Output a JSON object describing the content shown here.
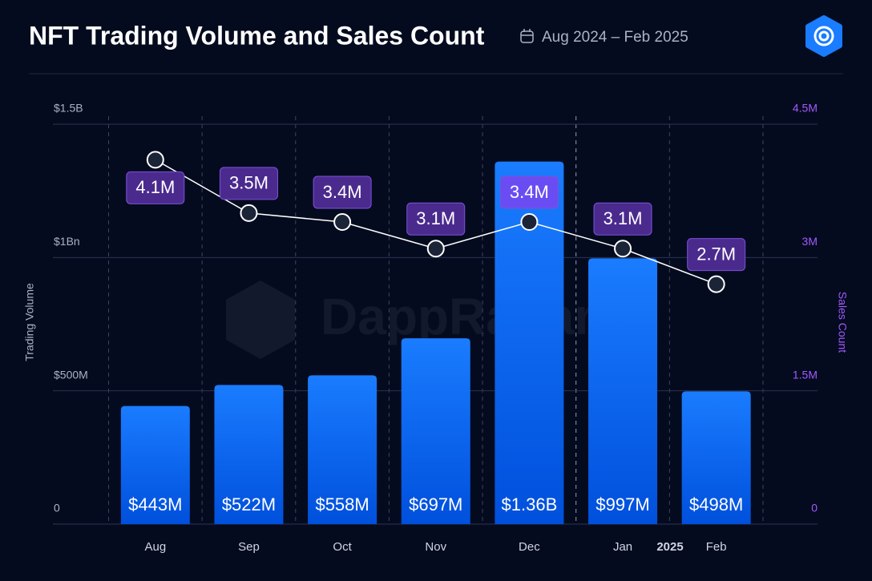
{
  "chart_data": {
    "type": "combo",
    "title": "NFT Trading Volume and Sales Count",
    "subtitle": "Aug 2024 – Feb 2025",
    "watermark": "DappRadar",
    "year_label": "2025",
    "ylabel": "Trading Volume",
    "y2label": "Sales Count",
    "categories": [
      "Aug",
      "Sep",
      "Oct",
      "Nov",
      "Dec",
      "Jan",
      "Feb"
    ],
    "ylim": [
      0,
      1500000000
    ],
    "yticks": [
      0,
      {
        "value": 500000000,
        "label": "$500M"
      },
      {
        "value": 1000000000,
        "label": "$1Bn"
      },
      {
        "value": 1500000000,
        "label": "$1.5B"
      }
    ],
    "y2lim": [
      0,
      4500000
    ],
    "y2ticks": [
      0,
      {
        "value": 1500000,
        "label": "1.5M"
      },
      {
        "value": 3000000,
        "label": "3M"
      },
      {
        "value": 4500000,
        "label": "4.5M"
      }
    ],
    "grid": true,
    "series": [
      {
        "type": "bar",
        "color": "#1673ff",
        "values": [
          443000000,
          522000000,
          558000000,
          697000000,
          1360000000,
          997000000,
          498000000
        ],
        "value_labels": [
          "$443M",
          "$522M",
          "$558M",
          "$697M",
          "$1.36B",
          "$997M",
          "$498M"
        ]
      },
      {
        "type": "line",
        "axis": "y2",
        "color": "#ffffff",
        "values": [
          4100000,
          3500000,
          3400000,
          3100000,
          3400000,
          3100000,
          2700000
        ],
        "value_labels": [
          "4.1M",
          "3.5M",
          "3.4M",
          "3.1M",
          "3.4M",
          "3.1M",
          "2.7M"
        ]
      }
    ]
  }
}
